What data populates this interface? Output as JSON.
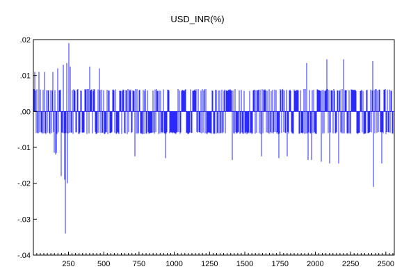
{
  "chart_data": {
    "type": "line",
    "title": "USD_INR(%)",
    "xlabel": "",
    "ylabel": "",
    "xlim": [
      1,
      2560
    ],
    "ylim": [
      -0.04,
      0.02
    ],
    "yticks": [
      {
        "value": 0.02,
        "label": ".02"
      },
      {
        "value": 0.01,
        "label": ".01"
      },
      {
        "value": 0.0,
        "label": ".00"
      },
      {
        "value": -0.01,
        "label": "-.01"
      },
      {
        "value": -0.02,
        "label": "-.02"
      },
      {
        "value": -0.03,
        "label": "-.03"
      },
      {
        "value": -0.04,
        "label": "-.04"
      }
    ],
    "xticks": [
      {
        "value": 250,
        "label": "250"
      },
      {
        "value": 500,
        "label": "500"
      },
      {
        "value": 750,
        "label": "750"
      },
      {
        "value": 1000,
        "label": "1000"
      },
      {
        "value": 1250,
        "label": "1250"
      },
      {
        "value": 1500,
        "label": "1500"
      },
      {
        "value": 1750,
        "label": "1750"
      },
      {
        "value": 2000,
        "label": "2000"
      },
      {
        "value": 2250,
        "label": "2250"
      },
      {
        "value": 2500,
        "label": "2500"
      }
    ],
    "grid": false,
    "legend": "none",
    "series": [
      {
        "color": "#2a2aff",
        "typical_band": [
          -0.006,
          0.006
        ],
        "spikes": [
          {
            "x": 12,
            "y": 0.011
          },
          {
            "x": 40,
            "y": 0.011
          },
          {
            "x": 80,
            "y": 0.011
          },
          {
            "x": 140,
            "y": 0.011
          },
          {
            "x": 150,
            "y": -0.0115
          },
          {
            "x": 158,
            "y": -0.012
          },
          {
            "x": 166,
            "y": -0.0115
          },
          {
            "x": 175,
            "y": 0.012
          },
          {
            "x": 200,
            "y": -0.018
          },
          {
            "x": 215,
            "y": 0.013
          },
          {
            "x": 222,
            "y": -0.019
          },
          {
            "x": 230,
            "y": -0.034
          },
          {
            "x": 240,
            "y": 0.0135
          },
          {
            "x": 245,
            "y": -0.02
          },
          {
            "x": 252,
            "y": 0.019
          },
          {
            "x": 262,
            "y": 0.0125
          },
          {
            "x": 400,
            "y": 0.0125
          },
          {
            "x": 470,
            "y": 0.012
          },
          {
            "x": 720,
            "y": -0.0125
          },
          {
            "x": 940,
            "y": -0.013
          },
          {
            "x": 1410,
            "y": -0.0135
          },
          {
            "x": 1620,
            "y": -0.0125
          },
          {
            "x": 1740,
            "y": -0.013
          },
          {
            "x": 1800,
            "y": -0.0125
          },
          {
            "x": 1940,
            "y": 0.0135
          },
          {
            "x": 1950,
            "y": -0.0135
          },
          {
            "x": 1975,
            "y": -0.0135
          },
          {
            "x": 2040,
            "y": -0.014
          },
          {
            "x": 2080,
            "y": 0.0145
          },
          {
            "x": 2100,
            "y": -0.0145
          },
          {
            "x": 2165,
            "y": -0.0145
          },
          {
            "x": 2200,
            "y": 0.0145
          },
          {
            "x": 2405,
            "y": 0.014
          },
          {
            "x": 2410,
            "y": -0.021
          },
          {
            "x": 2470,
            "y": -0.0145
          }
        ]
      }
    ]
  }
}
